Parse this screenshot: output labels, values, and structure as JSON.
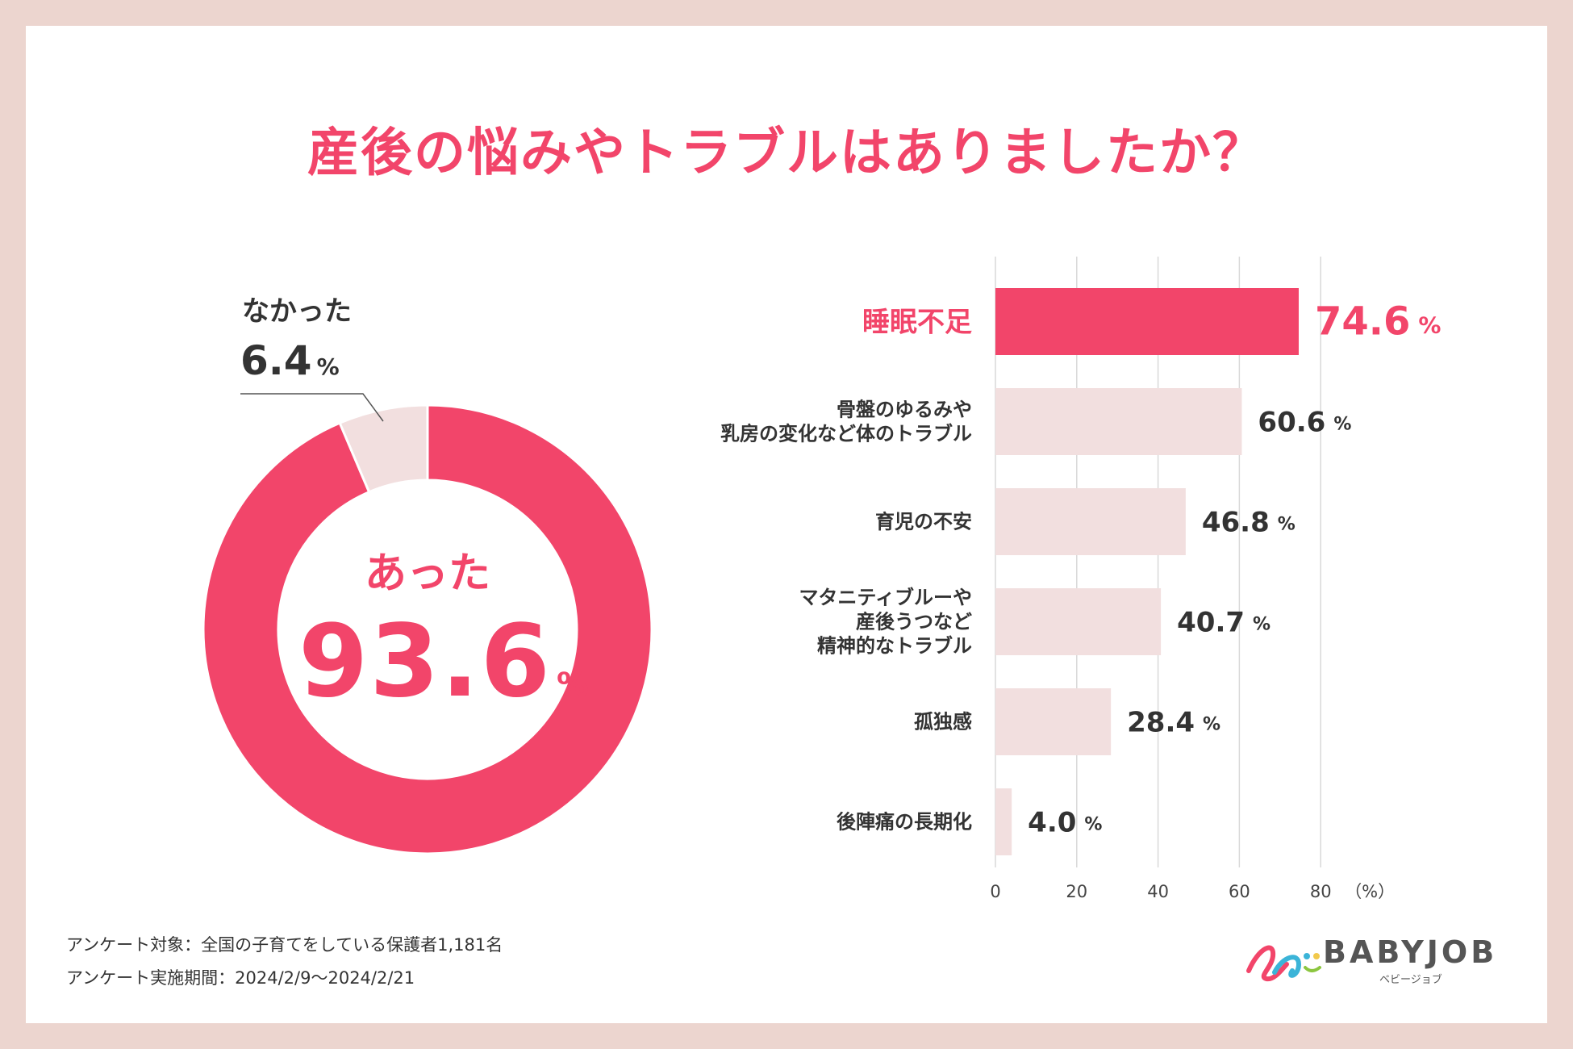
{
  "title": "産後の悩みやトラブルはありましたか？",
  "colors": {
    "accent": "#f2456a",
    "light": "#f2dfdf",
    "text": "#333333",
    "grid": "#d9d9d9",
    "frame": "#ecd5cf"
  },
  "chart_data": [
    {
      "type": "pie",
      "style": "donut",
      "categories": [
        "あった",
        "なかった"
      ],
      "values": [
        93.6,
        6.4
      ],
      "unit": "%",
      "labels": {
        "yes": {
          "label": "あった",
          "value": "93.6",
          "unit": "%"
        },
        "no": {
          "label": "なかった",
          "value": "6.4",
          "unit": "%"
        }
      }
    },
    {
      "type": "bar",
      "orientation": "horizontal",
      "categories": [
        [
          "睡眠不足"
        ],
        [
          "骨盤のゆるみや",
          "乳房の変化など体のトラブル"
        ],
        [
          "育児の不安"
        ],
        [
          "マタニティブルーや",
          "産後うつなど",
          "精神的なトラブル"
        ],
        [
          "孤独感"
        ],
        [
          "後陣痛の長期化"
        ]
      ],
      "values": [
        74.6,
        60.6,
        46.8,
        40.7,
        28.4,
        4.0
      ],
      "value_labels": [
        "74.6",
        "60.6",
        "46.8",
        "40.7",
        "28.4",
        "4.0"
      ],
      "value_unit": "%",
      "highlight_index": 0,
      "xlim": [
        0,
        80
      ],
      "ticks": [
        0,
        20,
        40,
        60,
        80
      ],
      "tick_labels": [
        "0",
        "20",
        "40",
        "60",
        "80"
      ],
      "axis_unit": "（%）"
    }
  ],
  "footnotes": {
    "target": "アンケート対象：全国の子育てをしている保護者1,181名",
    "period": "アンケート実施期間：2024/2/9〜2024/2/21"
  },
  "logo": {
    "name": "BABYJOB",
    "sub": "ベビージョブ"
  }
}
